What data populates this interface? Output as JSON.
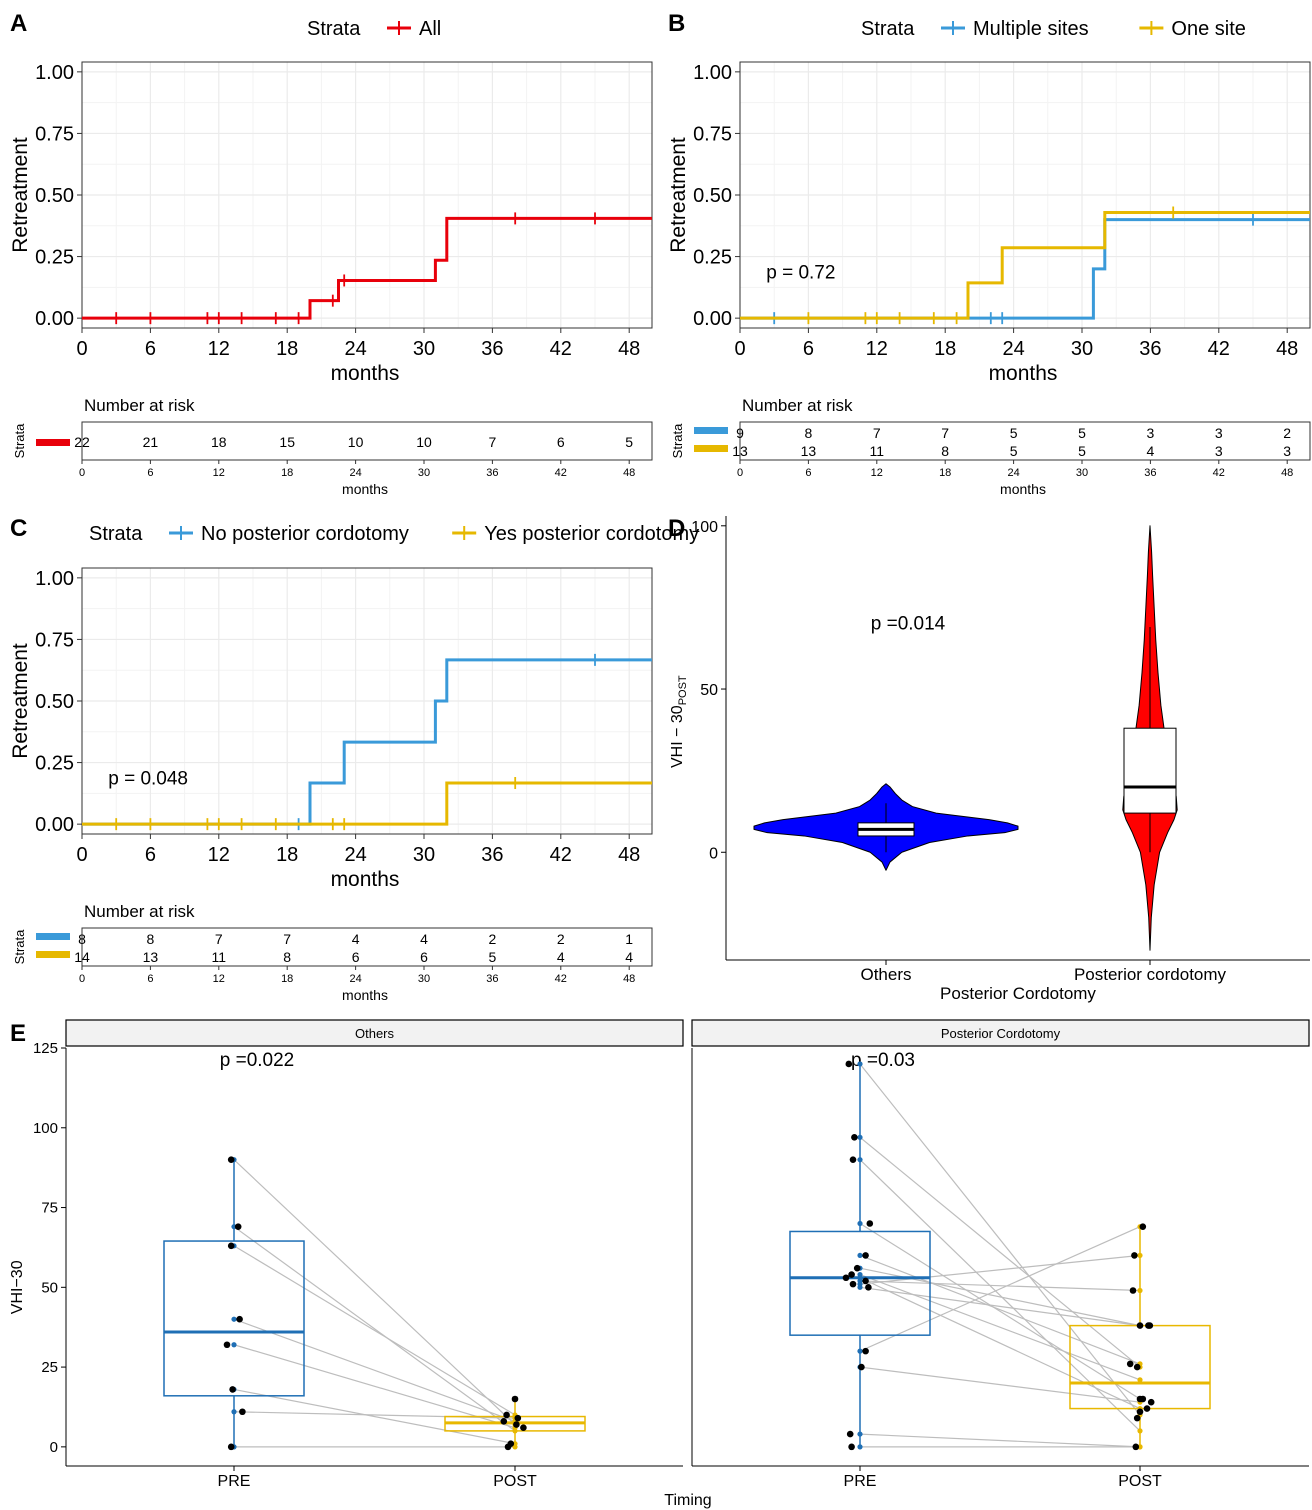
{
  "colors": {
    "red": "#e8000b",
    "blue": "#3a9ad9",
    "gold": "#e6b800",
    "violin_blue": "#0000ff",
    "violin_red": "#ff0000",
    "box_blue": "#1f6fb5",
    "box_gold": "#e8b800",
    "grid": "#ebebeb",
    "gray_line": "#bdbdbd"
  },
  "panels": {
    "A": {
      "label": "A",
      "legend_title": "Strata",
      "legend_items": [
        "All"
      ],
      "ylabel": "Retreatment",
      "xlabel": "months",
      "pvalue": "",
      "risk_title": "Number at risk",
      "risk_strata_label": "Strata",
      "risk_xlabel": "months"
    },
    "B": {
      "label": "B",
      "legend_title": "Strata",
      "legend_items": [
        "Multiple sites",
        "One site"
      ],
      "ylabel": "Retreatment",
      "xlabel": "months",
      "pvalue": "p = 0.72",
      "risk_title": "Number at risk",
      "risk_strata_label": "Strata",
      "risk_xlabel": "months"
    },
    "C": {
      "label": "C",
      "legend_title": "Strata",
      "legend_items": [
        "No posterior cordotomy",
        "Yes posterior cordotomy"
      ],
      "ylabel": "Retreatment",
      "xlabel": "months",
      "pvalue": "p = 0.048",
      "risk_title": "Number at risk",
      "risk_strata_label": "Strata",
      "risk_xlabel": "months"
    },
    "D": {
      "label": "D",
      "pvalue": "p =0.014",
      "ylabel_main": "VHI − 30",
      "ylabel_sub": "POST",
      "xlabel": "Posterior Cordotomy"
    },
    "E": {
      "label": "E",
      "facets": [
        "Others",
        "Posterior Cordotomy"
      ],
      "pvalues": [
        "p =0.022",
        "p =0.03"
      ],
      "ylabel": "VHI−30",
      "xlabel": "Timing"
    }
  },
  "chart_data": [
    {
      "type": "line",
      "panel": "A",
      "subtype": "step",
      "xlim": [
        0,
        50
      ],
      "ylim": [
        0,
        1
      ],
      "x_ticks": [
        0,
        6,
        12,
        18,
        24,
        30,
        36,
        42,
        48
      ],
      "y_ticks": [
        "0.00",
        "0.25",
        "0.50",
        "0.75",
        "1.00"
      ],
      "series": [
        {
          "name": "All",
          "color": "#e8000b",
          "steps": [
            [
              0,
              0
            ],
            [
              20,
              0.071
            ],
            [
              22.5,
              0.153
            ],
            [
              31,
              0.235
            ],
            [
              32,
              0.405
            ],
            [
              50,
              0.405
            ]
          ],
          "censor": [
            3,
            6,
            11,
            12,
            14,
            17,
            19,
            22,
            23,
            38,
            45
          ]
        }
      ],
      "risk_table": {
        "times": [
          0,
          6,
          12,
          18,
          24,
          30,
          36,
          42,
          48
        ],
        "rows": [
          {
            "color": "#e8000b",
            "values": [
              22,
              21,
              18,
              15,
              10,
              10,
              7,
              6,
              5
            ]
          }
        ]
      }
    },
    {
      "type": "line",
      "panel": "B",
      "subtype": "step",
      "xlim": [
        0,
        50
      ],
      "ylim": [
        0,
        1
      ],
      "x_ticks": [
        0,
        6,
        12,
        18,
        24,
        30,
        36,
        42,
        48
      ],
      "y_ticks": [
        "0.00",
        "0.25",
        "0.50",
        "0.75",
        "1.00"
      ],
      "series": [
        {
          "name": "Multiple sites",
          "color": "#3a9ad9",
          "steps": [
            [
              0,
              0
            ],
            [
              31,
              0.2
            ],
            [
              32,
              0.4
            ],
            [
              50,
              0.4
            ]
          ],
          "censor": [
            3,
            22,
            23,
            45
          ]
        },
        {
          "name": "One site",
          "color": "#e6b800",
          "steps": [
            [
              0,
              0
            ],
            [
              20,
              0.143
            ],
            [
              23,
              0.286
            ],
            [
              32,
              0.429
            ],
            [
              50,
              0.429
            ]
          ],
          "censor": [
            6,
            11,
            12,
            14,
            17,
            19,
            38
          ]
        }
      ],
      "risk_table": {
        "times": [
          0,
          6,
          12,
          18,
          24,
          30,
          36,
          42,
          48
        ],
        "rows": [
          {
            "color": "#3a9ad9",
            "values": [
              9,
              8,
              7,
              7,
              5,
              5,
              3,
              3,
              2
            ]
          },
          {
            "color": "#e6b800",
            "values": [
              13,
              13,
              11,
              8,
              5,
              5,
              4,
              3,
              3
            ]
          }
        ]
      }
    },
    {
      "type": "line",
      "panel": "C",
      "subtype": "step",
      "xlim": [
        0,
        50
      ],
      "ylim": [
        0,
        1
      ],
      "x_ticks": [
        0,
        6,
        12,
        18,
        24,
        30,
        36,
        42,
        48
      ],
      "y_ticks": [
        "0.00",
        "0.25",
        "0.50",
        "0.75",
        "1.00"
      ],
      "series": [
        {
          "name": "No posterior cordotomy",
          "color": "#3a9ad9",
          "steps": [
            [
              0,
              0
            ],
            [
              20,
              0.167
            ],
            [
              23,
              0.333
            ],
            [
              31,
              0.5
            ],
            [
              32,
              0.667
            ],
            [
              50,
              0.667
            ]
          ],
          "censor": [
            19,
            45
          ]
        },
        {
          "name": "Yes posterior cordotomy",
          "color": "#e6b800",
          "steps": [
            [
              0,
              0
            ],
            [
              32,
              0.167
            ],
            [
              50,
              0.167
            ]
          ],
          "censor": [
            3,
            6,
            11,
            12,
            14,
            17,
            22,
            23,
            38
          ]
        }
      ],
      "risk_table": {
        "times": [
          0,
          6,
          12,
          18,
          24,
          30,
          36,
          42,
          48
        ],
        "rows": [
          {
            "color": "#3a9ad9",
            "values": [
              8,
              8,
              7,
              7,
              4,
              4,
              2,
              2,
              1
            ]
          },
          {
            "color": "#e6b800",
            "values": [
              14,
              13,
              11,
              8,
              6,
              6,
              5,
              4,
              4
            ]
          }
        ]
      }
    },
    {
      "type": "violin",
      "panel": "D",
      "categories": [
        "Others",
        "Posterior cordotomy"
      ],
      "ylim": [
        -33,
        103
      ],
      "y_ticks": [
        0,
        50,
        100
      ],
      "groups": [
        {
          "name": "Others",
          "fill": "#0000ff",
          "density": [
            [
              -5.5,
              0
            ],
            [
              -3,
              0.03
            ],
            [
              0,
              0.12
            ],
            [
              3,
              0.33
            ],
            [
              5,
              0.62
            ],
            [
              6,
              0.9
            ],
            [
              7,
              1.0
            ],
            [
              8,
              1.0
            ],
            [
              9,
              0.92
            ],
            [
              10,
              0.78
            ],
            [
              11,
              0.58
            ],
            [
              12,
              0.38
            ],
            [
              14,
              0.2
            ],
            [
              16,
              0.12
            ],
            [
              18,
              0.07
            ],
            [
              20,
              0.03
            ],
            [
              21,
              0
            ]
          ],
          "box": {
            "min": 0,
            "q1": 5,
            "median": 7,
            "q3": 9,
            "max": 15
          }
        },
        {
          "name": "Posterior cordotomy",
          "fill": "#ff0000",
          "density": [
            [
              -30,
              0
            ],
            [
              -20,
              0.04
            ],
            [
              -10,
              0.13
            ],
            [
              0,
              0.3
            ],
            [
              6,
              0.55
            ],
            [
              10,
              0.75
            ],
            [
              13,
              0.85
            ],
            [
              17,
              0.82
            ],
            [
              22,
              0.72
            ],
            [
              28,
              0.6
            ],
            [
              35,
              0.48
            ],
            [
              45,
              0.34
            ],
            [
              55,
              0.25
            ],
            [
              65,
              0.18
            ],
            [
              75,
              0.13
            ],
            [
              85,
              0.08
            ],
            [
              92,
              0.05
            ],
            [
              100,
              0
            ]
          ],
          "box": {
            "min": 0,
            "q1": 12,
            "median": 20,
            "q3": 38,
            "max": 69
          }
        }
      ]
    },
    {
      "type": "box",
      "panel": "E",
      "facets": [
        "Others",
        "Posterior Cordotomy"
      ],
      "categories": [
        "PRE",
        "POST"
      ],
      "ylim": [
        -6,
        125
      ],
      "y_ticks": [
        0,
        25,
        50,
        75,
        100,
        125
      ],
      "groups": [
        {
          "facet": "Others",
          "pre_box": {
            "min": 0,
            "q1": 16,
            "median": 36,
            "q3": 64.5,
            "max": 90
          },
          "post_box": {
            "min": 0,
            "q1": 5,
            "median": 7.5,
            "q3": 9.5,
            "max": 15
          },
          "pairs": [
            [
              90,
              7
            ],
            [
              69,
              5
            ],
            [
              63,
              10
            ],
            [
              40,
              8
            ],
            [
              32,
              6
            ],
            [
              18,
              1
            ],
            [
              11,
              9
            ],
            [
              0,
              0
            ]
          ],
          "pre_jitter": [
            [
              -0.02,
              90
            ],
            [
              0.03,
              69
            ],
            [
              -0.02,
              63
            ],
            [
              0.04,
              40
            ],
            [
              -0.05,
              32
            ],
            [
              -0.01,
              18
            ],
            [
              0.06,
              11
            ],
            [
              -0.02,
              0
            ]
          ],
          "post_jitter": [
            [
              0,
              15
            ],
            [
              -0.06,
              10
            ],
            [
              0.02,
              9
            ],
            [
              -0.08,
              8
            ],
            [
              0.06,
              6
            ],
            [
              0.01,
              7
            ],
            [
              -0.05,
              0
            ],
            [
              -0.03,
              1
            ]
          ]
        },
        {
          "facet": "Posterior Cordotomy",
          "pre_box": {
            "min": 0,
            "q1": 35,
            "median": 53,
            "q3": 67.5,
            "max": 120
          },
          "post_box": {
            "min": 0,
            "q1": 12,
            "median": 20,
            "q3": 38,
            "max": 69
          },
          "pairs": [
            [
              120,
              10
            ],
            [
              97,
              25
            ],
            [
              90,
              5
            ],
            [
              70,
              15
            ],
            [
              60,
              26
            ],
            [
              56,
              38
            ],
            [
              54,
              21
            ],
            [
              53,
              12
            ],
            [
              52,
              49
            ],
            [
              51,
              60
            ],
            [
              50,
              38
            ],
            [
              30,
              69
            ],
            [
              25,
              14
            ],
            [
              4,
              0
            ],
            [
              0,
              0
            ]
          ],
          "pre_jitter": [
            [
              -0.08,
              120
            ],
            [
              -0.04,
              97
            ],
            [
              -0.05,
              90
            ],
            [
              0.07,
              70
            ],
            [
              0.04,
              60
            ],
            [
              -0.02,
              56
            ],
            [
              -0.06,
              54
            ],
            [
              -0.1,
              53
            ],
            [
              0.04,
              52
            ],
            [
              -0.05,
              51
            ],
            [
              0.06,
              50
            ],
            [
              0.04,
              30
            ],
            [
              0.01,
              25
            ],
            [
              -0.07,
              4
            ],
            [
              -0.06,
              0
            ]
          ],
          "post_jitter": [
            [
              0.02,
              69
            ],
            [
              -0.04,
              60
            ],
            [
              -0.05,
              49
            ],
            [
              0.07,
              38
            ],
            [
              0.0,
              38
            ],
            [
              -0.07,
              26
            ],
            [
              -0.02,
              25
            ],
            [
              0.0,
              15
            ],
            [
              0.08,
              14
            ],
            [
              0.05,
              12
            ],
            [
              0.0,
              11
            ],
            [
              -0.02,
              9
            ],
            [
              0.06,
              38
            ],
            [
              -0.03,
              0
            ],
            [
              0.02,
              15
            ]
          ]
        }
      ]
    }
  ]
}
